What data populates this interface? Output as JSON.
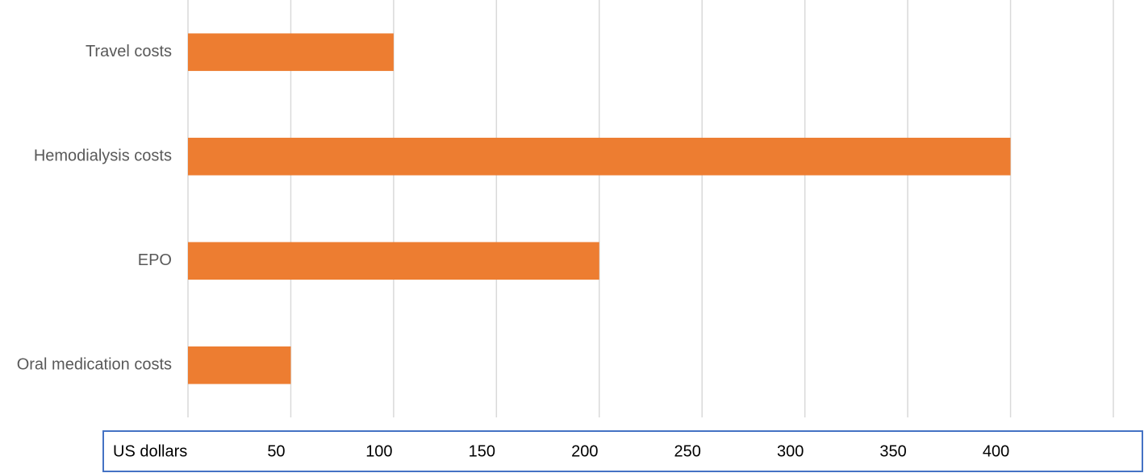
{
  "chart_data": {
    "type": "hbar",
    "x_label": "US dollars",
    "categories": [
      "Travel costs",
      "Hemodialysis costs",
      "EPO",
      "Oral medication costs"
    ],
    "values": [
      100,
      400,
      200,
      50
    ],
    "color": "#ed7d31",
    "xlim": [
      0,
      450
    ],
    "xticks": [
      50,
      100,
      150,
      200,
      250,
      300,
      350,
      400
    ],
    "grid": true
  }
}
